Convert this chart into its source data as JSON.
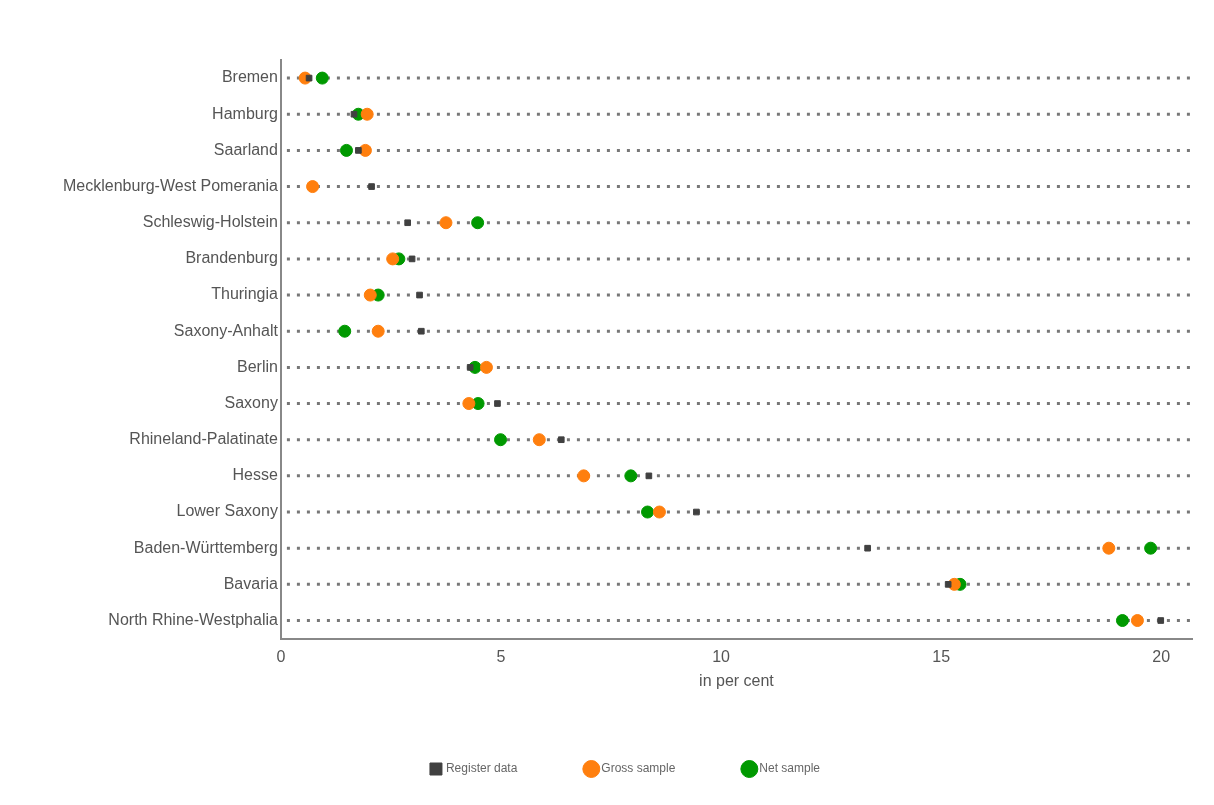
{
  "chart_data": {
    "type": "scatter",
    "orientation": "horizontal",
    "xlabel": "in per cent",
    "categories": [
      "Bremen",
      "Hamburg",
      "Saarland",
      "Mecklenburg-West Pomerania",
      "Schleswig-Holstein",
      "Brandenburg",
      "Thuringia",
      "Saxony-Anhalt",
      "Berlin",
      "Saxony",
      "Rhineland-Palatinate",
      "Hesse",
      "Lower Saxony",
      "Baden-Württemberg",
      "Bavaria",
      "North Rhine-Westphalia"
    ],
    "series": [
      {
        "name": "Register data",
        "color": "#404040",
        "marker": "square",
        "values": [
          0.64,
          1.66,
          1.76,
          2.06,
          2.88,
          2.98,
          3.15,
          3.19,
          4.3,
          4.92,
          6.37,
          8.36,
          9.44,
          13.33,
          15.16,
          19.99
        ]
      },
      {
        "name": "Gross sample",
        "color": "#ff7f0e",
        "marker": "circle",
        "values": [
          0.55,
          1.96,
          1.92,
          0.72,
          3.75,
          2.54,
          2.03,
          2.21,
          4.67,
          4.27,
          5.87,
          6.88,
          8.6,
          18.81,
          15.3,
          19.46
        ]
      },
      {
        "name": "Net sample",
        "color": "#009900",
        "marker": "circle",
        "values": [
          0.94,
          1.76,
          1.49,
          null,
          4.47,
          2.68,
          2.21,
          1.45,
          4.41,
          4.48,
          4.99,
          7.95,
          8.33,
          19.76,
          15.43,
          19.12
        ]
      }
    ],
    "xlim": [
      0,
      20.7
    ],
    "xticks": [
      0,
      5,
      10,
      15,
      20
    ],
    "grid": "y",
    "legend": "bottom"
  }
}
